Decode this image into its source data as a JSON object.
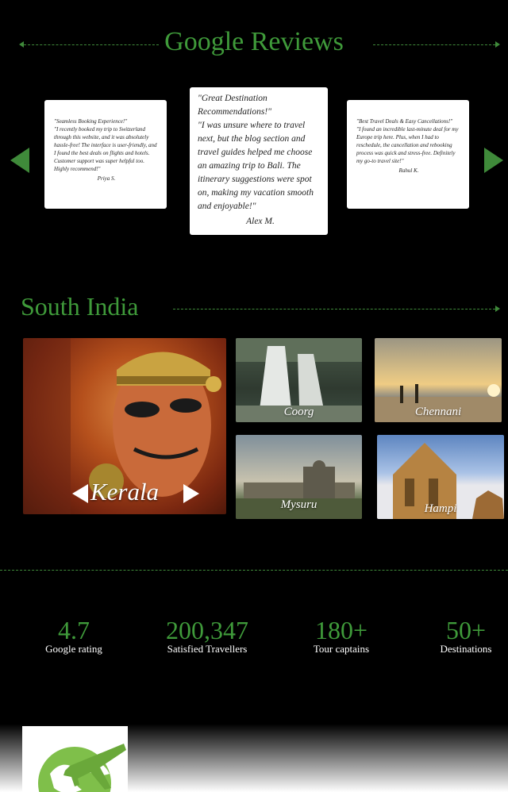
{
  "reviews": {
    "title": "Google Reviews",
    "items": [
      {
        "text": "\"Seamless Booking Experience!\"\n\"I recently booked my trip to Switzerland through this website, and it was absolutely hassle-free! The interface is user-friendly, and I found the best deals on flights and hotels. Customer support was super helpful too. Highly recommend!\"",
        "author": "Priya S."
      },
      {
        "text": "\"Great Destination Recommendations!\"\n\"I was unsure where to travel next, but the blog section and travel guides helped me choose an amazing trip to Bali. The itinerary suggestions were spot on, making my vacation smooth and enjoyable!\"",
        "author": "Alex M."
      },
      {
        "text": "\"Best Travel Deals & Easy Cancellations!\"\n\"I found an incredible last-minute deal for my Europe trip here. Plus, when I had to reschedule, the cancellation and rebooking process was quick and stress-free. Definitely my go-to travel site!\"",
        "author": "Rahul K."
      }
    ]
  },
  "south_india": {
    "title": "South India",
    "featured": "Kerala",
    "tiles": [
      "Coorg",
      "Chennani",
      "Mysuru",
      "Hampi"
    ]
  },
  "stats": [
    {
      "value": "4.7",
      "label": "Google rating"
    },
    {
      "value": "200,347",
      "label": "Satisfied Travellers"
    },
    {
      "value": "180+",
      "label": "Tour captains"
    },
    {
      "value": "50+",
      "label": "Destinations"
    }
  ],
  "colors": {
    "accent": "#3f9a3a",
    "background": "#000000"
  },
  "icons": {
    "prev": "triangle-left-icon",
    "next": "triangle-right-icon",
    "logo": "globe-plane-logo"
  }
}
